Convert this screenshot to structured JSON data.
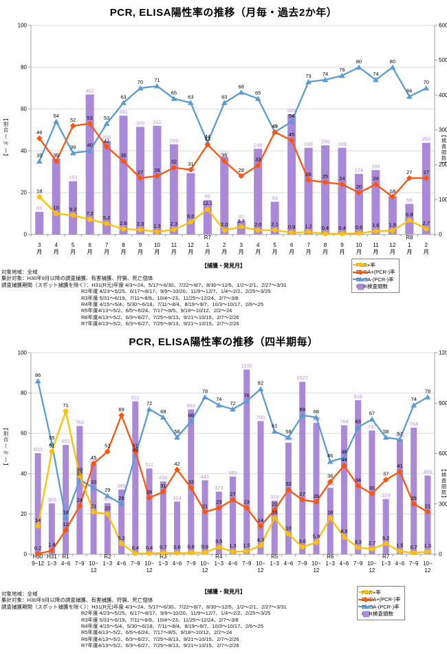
{
  "colors": {
    "pcr": "#FFC000",
    "elisa_plus": "#FF5409",
    "elisa_minus": "#5B9BD5",
    "bars": "#A989D8",
    "bar_label": "#B893E8",
    "grid": "#D9D9D9",
    "axis": "#9E9E9E"
  },
  "legend": {
    "items": [
      {
        "key": "pcr",
        "marker": "circle",
        "label": "PCR+率"
      },
      {
        "key": "elisa_plus",
        "marker": "diamond",
        "label": "ELISA+(PCR-)率"
      },
      {
        "key": "elisa_minus",
        "marker": "triangle",
        "label": "ELISA-(PCR-)率"
      },
      {
        "key": "bars",
        "marker": "square",
        "label": "PCR検査頭数"
      }
    ]
  },
  "footer": {
    "lines": [
      "対象地域：全域",
      "集計対象：H30年9月以降の調査捕獲、有害捕獲、狩猟、死亡個体",
      "調査捕獲期間（スポット捕獲を除く）：H31(R元)年度 4/3～24、5/17～6/30、7/22～8/7、8/30～12/5、1/2～2/1、2/27～3/31",
      "R2年度 4/23～5/25、6/17～8/17、9/9～10/20、11/9～12/7、1/4～2/2、2/25～3/25",
      "R3年度 5/31～6/19、7/11～8/9、10/4～23、11/25～12/24、2/7～3/8",
      "R4年度 4/15～5/4、5/30～6/18、7/11～8/4、8/19～9/7、10/3～10/17、2/6～25",
      "R5年度4/13～5/2、6/5～6/24、7/17～8/5、9/18～10/12、2/2～24",
      "R6年度4/13～5/2、6/3～6/27、7/25～8/13、9/21～10/15、2/7～2/26",
      "R7年度4/13～5/2、6/3～6/27、7/25～8/13、9/21～10/15、2/7～2/26"
    ]
  },
  "chart_data": [
    {
      "type": "bar+line combo",
      "title": "PCR, ELISA陽性率の推移（月毎・過去2か年）",
      "x_axis_title": "【捕獲・発見月】",
      "grid": "on",
      "legend_position": "below-right",
      "y_left": {
        "title": "【割合(%)】",
        "min": 0,
        "max": 100,
        "ticks": [
          "0",
          "20",
          "40",
          "60",
          "80",
          "100"
        ]
      },
      "y_right": {
        "title": "【検査頭数】",
        "min": 0,
        "max": 600,
        "ticks": [
          "0",
          "100",
          "200",
          "300",
          "400",
          "500",
          "600"
        ]
      },
      "x_ticks": [
        {
          "era": "",
          "l1": "3",
          "l2": "月"
        },
        {
          "era": "",
          "l1": "4",
          "l2": "月"
        },
        {
          "era": "",
          "l1": "5",
          "l2": "月"
        },
        {
          "era": "",
          "l1": "6",
          "l2": "月"
        },
        {
          "era": "",
          "l1": "7",
          "l2": "月"
        },
        {
          "era": "",
          "l1": "8",
          "l2": "月"
        },
        {
          "era": "",
          "l1": "9",
          "l2": "月"
        },
        {
          "era": "",
          "l1": "10",
          "l2": "月"
        },
        {
          "era": "",
          "l1": "11",
          "l2": "月"
        },
        {
          "era": "",
          "l1": "12",
          "l2": "月"
        },
        {
          "era": "R7",
          "l1": "1",
          "l2": "月"
        },
        {
          "era": "",
          "l1": "2",
          "l2": "月"
        },
        {
          "era": "",
          "l1": "3",
          "l2": "月"
        },
        {
          "era": "",
          "l1": "4",
          "l2": "月"
        },
        {
          "era": "",
          "l1": "5",
          "l2": "月"
        },
        {
          "era": "",
          "l1": "6",
          "l2": "月"
        },
        {
          "era": "",
          "l1": "7",
          "l2": "月"
        },
        {
          "era": "",
          "l1": "8",
          "l2": "月"
        },
        {
          "era": "",
          "l1": "9",
          "l2": "月"
        },
        {
          "era": "",
          "l1": "10",
          "l2": "月"
        },
        {
          "era": "",
          "l1": "11",
          "l2": "月"
        },
        {
          "era": "",
          "l1": "12",
          "l2": "月"
        },
        {
          "era": "R8",
          "l1": "1",
          "l2": "月"
        },
        {
          "era": "",
          "l1": "2",
          "l2": "月"
        }
      ],
      "bars": {
        "name": "PCR検査頭数",
        "axis": "right",
        "values": [
          "65",
          "218",
          "153",
          "402",
          "268",
          "341",
          "309",
          "312",
          "259",
          "176",
          "99",
          "222",
          "40",
          "246",
          "94",
          "345",
          "249",
          "256",
          "249",
          "174",
          "185",
          "110",
          "88",
          "263"
        ]
      },
      "lines": [
        {
          "name": "PCR+率",
          "key": "pcr",
          "marker": "circle",
          "axis": "left",
          "values": [
            "18",
            "10",
            "9.2",
            "7.2",
            "5.2",
            "2.6",
            "2.3",
            "1.3",
            "2.3",
            "6.0",
            "12.1",
            "2.0",
            "3.7",
            "2.0",
            "2.1",
            "0.9",
            "1.2",
            "0.4",
            "0.4",
            "0.6",
            "1.6",
            "1.8",
            "6.8",
            "2.7"
          ]
        },
        {
          "name": "ELISA+(PCR-)率",
          "key": "elisa_plus",
          "marker": "diamond",
          "axis": "left",
          "values": [
            "46",
            "35",
            "52",
            "53",
            "42",
            "35",
            "27",
            "28",
            "32",
            "31",
            "43",
            "35",
            "28",
            "33",
            "49",
            "45",
            "26",
            "25",
            "24",
            "20",
            "24",
            "18",
            "27",
            "27"
          ]
        },
        {
          "name": "ELISA-(PCR-)率",
          "key": "elisa_minus",
          "marker": "triangle",
          "axis": "left",
          "values": [
            "35",
            "54",
            "39",
            "40",
            "53",
            "63",
            "70",
            "71",
            "65",
            "63",
            "44",
            "63",
            "68",
            "65",
            "49",
            "54",
            "73",
            "74",
            "76",
            "80",
            "74",
            "80",
            "66",
            "70"
          ]
        }
      ]
    },
    {
      "type": "bar+line combo",
      "title": "PCR, ELISA陽性率の推移（四半期毎）",
      "x_axis_title": "【捕獲・発見月】",
      "grid": "on",
      "legend_position": "below-right",
      "y_left": {
        "title": "【割合(%)】",
        "min": 0,
        "max": 100,
        "ticks": [
          "0",
          "20",
          "40",
          "60",
          "80",
          "100"
        ]
      },
      "y_right": {
        "title": "【検査頭数】",
        "min": 0,
        "max": 1200,
        "ticks": [
          "0",
          "300",
          "600",
          "900",
          "1200"
        ]
      },
      "x_ticks": [
        {
          "era": "H30",
          "l1": "9~12",
          "l2": ""
        },
        {
          "era": "H31",
          "l1": "1~3",
          "l2": ""
        },
        {
          "era": "R1",
          "l1": "4~6",
          "l2": ""
        },
        {
          "era": "",
          "l1": "7~9",
          "l2": ""
        },
        {
          "era": "",
          "l1": "10~",
          "l2": "12"
        },
        {
          "era": "R2",
          "l1": "1~3",
          "l2": ""
        },
        {
          "era": "",
          "l1": "4~6",
          "l2": ""
        },
        {
          "era": "",
          "l1": "7~9",
          "l2": ""
        },
        {
          "era": "",
          "l1": "10~",
          "l2": "12"
        },
        {
          "era": "R3",
          "l1": "1~3",
          "l2": ""
        },
        {
          "era": "",
          "l1": "4~6",
          "l2": ""
        },
        {
          "era": "",
          "l1": "7~9",
          "l2": ""
        },
        {
          "era": "",
          "l1": "10~",
          "l2": "12"
        },
        {
          "era": "R4",
          "l1": "1~3",
          "l2": ""
        },
        {
          "era": "",
          "l1": "4~6",
          "l2": ""
        },
        {
          "era": "",
          "l1": "7~9",
          "l2": ""
        },
        {
          "era": "",
          "l1": "10~",
          "l2": "12"
        },
        {
          "era": "R5",
          "l1": "1~3",
          "l2": ""
        },
        {
          "era": "",
          "l1": "4~6",
          "l2": ""
        },
        {
          "era": "",
          "l1": "7~9",
          "l2": ""
        },
        {
          "era": "",
          "l1": "10~",
          "l2": "12"
        },
        {
          "era": "R6",
          "l1": "1~3",
          "l2": ""
        },
        {
          "era": "",
          "l1": "4~6",
          "l2": ""
        },
        {
          "era": "",
          "l1": "7~9",
          "l2": ""
        },
        {
          "era": "",
          "l1": "10~",
          "l2": "12"
        },
        {
          "era": "R7",
          "l1": "1~3",
          "l2": ""
        },
        {
          "era": "",
          "l1": "4~6",
          "l2": ""
        },
        {
          "era": "",
          "l1": "7~9",
          "l2": ""
        },
        {
          "era": "",
          "l1": "10~",
          "l2": "12"
        }
      ],
      "bars": {
        "name": "PCR検査頭数",
        "axis": "right",
        "values": [
          "602",
          "303",
          "651",
          "764",
          "536",
          "305",
          "385",
          "911",
          "511",
          "434",
          "314",
          "863",
          "441",
          "373",
          "463",
          "1100",
          "793",
          "319",
          "665",
          "1027",
          "782",
          "396",
          "768",
          "918",
          "737",
          "329",
          "686",
          "754",
          "469"
        ]
      },
      "lines": [
        {
          "name": "PCR+率",
          "key": "pcr",
          "marker": "circle",
          "axis": "left",
          "values": [
            "14",
            "51",
            "71",
            "39",
            "21",
            "20",
            "5.2",
            "0.4",
            "0.4",
            "0.7",
            "0.6",
            "0.8",
            "0.9",
            "3.5",
            "1.3",
            "1.5",
            "4.3",
            "18",
            "10",
            "3.6",
            "5.9",
            "18",
            "8.5",
            "3.3",
            "2.7",
            "5.2",
            "1.5",
            "0.7",
            "1.3"
          ]
        },
        {
          "name": "ELISA+(PCR-)率",
          "key": "elisa_plus",
          "marker": "diamond",
          "axis": "left",
          "values": [
            "0.2",
            "1.8",
            "12",
            "24",
            "45",
            "51",
            "69",
            "51",
            "28",
            "31",
            "42",
            "33",
            "21",
            "23",
            "27",
            "23",
            "14",
            "22",
            "32",
            "27",
            "26",
            "36",
            "44",
            "34",
            "30",
            "37",
            "41",
            "25",
            "21"
          ]
        },
        {
          "name": "ELISA-(PCR-)率",
          "key": "elisa_minus",
          "marker": "triangle",
          "axis": "left",
          "values": [
            "86",
            "55",
            "18",
            "37",
            "33",
            "29",
            "25",
            "49",
            "72",
            "68",
            "58",
            "66",
            "78",
            "74",
            "72",
            "76",
            "82",
            "61",
            "58",
            "69",
            "68",
            "46",
            "48",
            "63",
            "67",
            "58",
            "57",
            "74",
            "78"
          ]
        }
      ]
    }
  ]
}
